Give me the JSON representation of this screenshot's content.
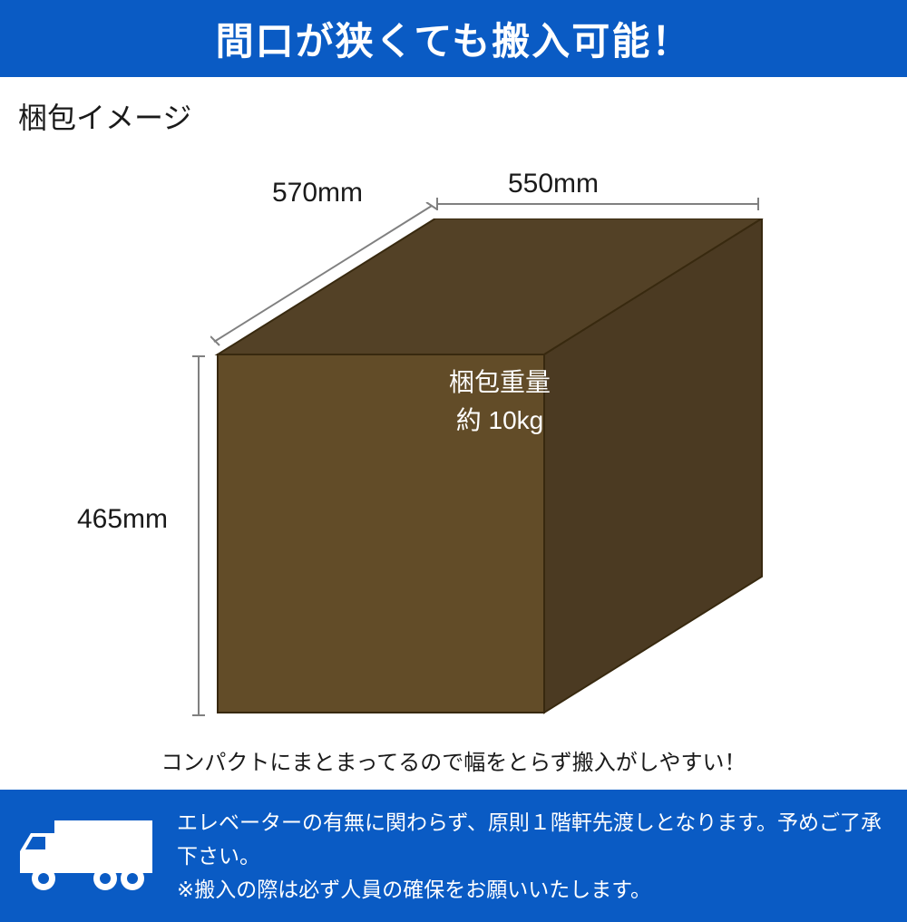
{
  "header": {
    "title": "間口が狭くても搬入可能！",
    "bg_color": "#0a5bc4",
    "text_color": "#ffffff"
  },
  "subtitle": "梱包イメージ",
  "box": {
    "top_fill": "#534126",
    "front_fill": "#624c28",
    "side_fill": "#4b3a22",
    "stroke": "#38290f"
  },
  "dimensions": {
    "width": "550mm",
    "depth": "570mm",
    "height": "465mm",
    "line_color": "#808080"
  },
  "weight": {
    "label": "梱包重量",
    "value": "約 10kg",
    "text_color": "#ffffff"
  },
  "caption": "コンパクトにまとまってるので幅をとらず搬入がしやすい！",
  "footer": {
    "text": "エレベーターの有無に関わらず、原則１階軒先渡しとなります。予めご了承下さい。\n※搬入の際は必ず人員の確保をお願いいたします。",
    "bg_color": "#0a5bc4",
    "text_color": "#ffffff",
    "truck_color": "#ffffff"
  }
}
